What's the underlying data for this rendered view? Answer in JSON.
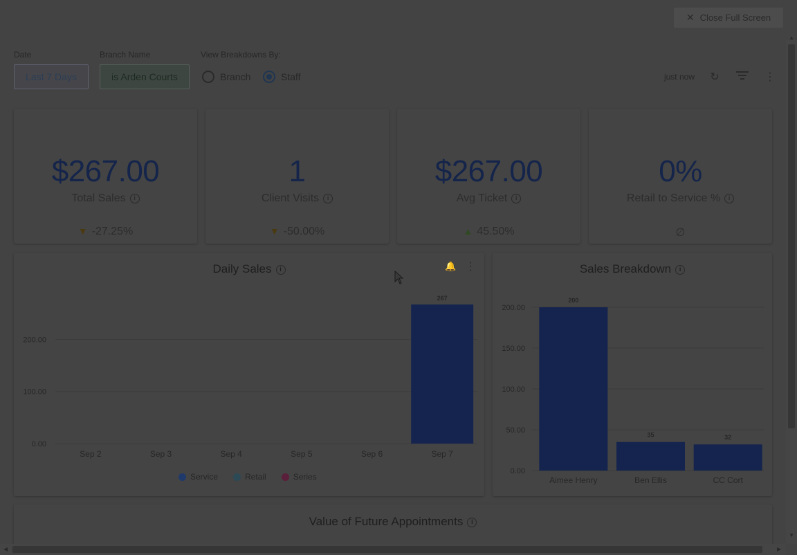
{
  "header": {
    "close_label": "Close Full Screen"
  },
  "filters": {
    "date_label": "Date",
    "date_value": "Last 7 Days",
    "branch_label": "Branch Name",
    "branch_value": "is Arden Courts",
    "breakdown_label": "View Breakdowns By:",
    "options": [
      {
        "label": "Branch",
        "selected": false
      },
      {
        "label": "Staff",
        "selected": true
      }
    ]
  },
  "toolbar": {
    "updated": "just now",
    "icons": [
      "refresh-icon",
      "filter-icon",
      "more-vert-icon"
    ]
  },
  "kpis": [
    {
      "value": "$267.00",
      "label": "Total Sales",
      "change": "-27.25%",
      "direction": "down"
    },
    {
      "value": "1",
      "label": "Client Visits",
      "change": "-50.00%",
      "direction": "down"
    },
    {
      "value": "$267.00",
      "label": "Avg Ticket",
      "change": "45.50%",
      "direction": "up"
    },
    {
      "value": "0%",
      "label": "Retail to Service %",
      "change": "∅",
      "direction": "none"
    }
  ],
  "daily_sales": {
    "title": "Daily Sales",
    "legend": [
      {
        "name": "Service",
        "color": "#1f3a6a"
      },
      {
        "name": "Retail",
        "color": "#2c4a56"
      },
      {
        "name": "Series",
        "color": "#5a1f3a"
      }
    ]
  },
  "sales_breakdown": {
    "title": "Sales Breakdown"
  },
  "future_appointments": {
    "title": "Value of Future Appointments"
  },
  "chart_data": [
    {
      "type": "bar",
      "title": "Daily Sales",
      "categories": [
        "Sep 2",
        "Sep 3",
        "Sep 4",
        "Sep 5",
        "Sep 6",
        "Sep 7"
      ],
      "series": [
        {
          "name": "Service",
          "values": [
            0,
            0,
            0,
            0,
            0,
            267
          ]
        }
      ],
      "data_labels": [
        "",
        "",
        "",
        "",
        "",
        "267"
      ],
      "y_ticks": [
        "0.00",
        "100.00",
        "200.00"
      ],
      "ylim": [
        0,
        267
      ],
      "grid": true,
      "legend": "bottom"
    },
    {
      "type": "bar",
      "title": "Sales Breakdown",
      "categories": [
        "Aimee Henry",
        "Ben Ellis",
        "CC Cort"
      ],
      "values": [
        200,
        35,
        32
      ],
      "data_labels": [
        "200",
        "35",
        "32"
      ],
      "y_ticks": [
        "0.00",
        "50.00",
        "100.00",
        "150.00",
        "200.00"
      ],
      "ylim": [
        0,
        200
      ],
      "grid": true
    }
  ],
  "colors": {
    "bar": "#14244e",
    "overlay_bg": "#434343",
    "accent": "#1f3550"
  }
}
